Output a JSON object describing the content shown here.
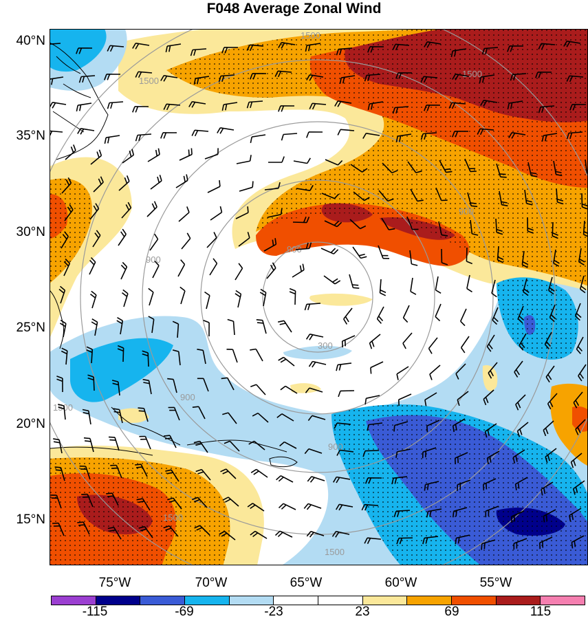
{
  "title": "F048 Average Zonal Wind",
  "latitude_labels": [
    "40°N",
    "35°N",
    "30°N",
    "25°N",
    "20°N",
    "15°N"
  ],
  "longitude_labels": [
    "75°W",
    "70°W",
    "65°W",
    "60°W",
    "55°W"
  ],
  "colorbar": {
    "colors": [
      "#9b3fd1",
      "#00008b",
      "#3a5bd6",
      "#16b4ee",
      "#b3dcf3",
      "#ffffff",
      "#ffffff",
      "#fbe89a",
      "#f7a300",
      "#f04f00",
      "#aa1c1c",
      "#f57fb0"
    ],
    "labels": [
      "-115",
      "-69",
      "-23",
      "23",
      "69",
      "115"
    ]
  },
  "range_ring_labels": [
    "1500",
    "1500",
    "900",
    "900",
    "300",
    "900",
    "900",
    "900",
    "1500",
    "1500",
    "1500",
    "1500"
  ]
}
